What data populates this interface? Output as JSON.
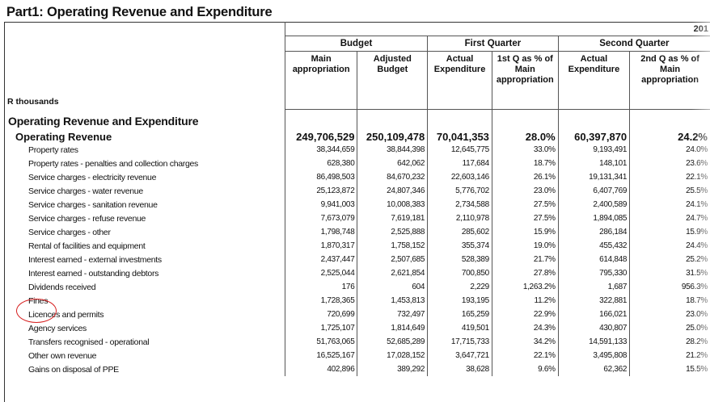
{
  "page": {
    "title": "Part1: Operating Revenue and Expenditure",
    "units_label": "R thousands",
    "year_label": "201",
    "highlight_color": "#d62020"
  },
  "header": {
    "groups": [
      "Budget",
      "First Quarter",
      "Second Quarter"
    ],
    "columns": [
      "Main appropriation",
      "Adjusted Budget",
      "Actual Expenditure",
      "1st Q as % of Main appropriation",
      "Actual Expenditure",
      "2nd Q as % of Main appropriation"
    ]
  },
  "section": {
    "title": "Operating Revenue and Expenditure"
  },
  "total": {
    "label": "Operating Revenue",
    "values": [
      "249,706,529",
      "250,109,478",
      "70,041,353",
      "28.0%",
      "60,397,870",
      "24.2%"
    ]
  },
  "rows": [
    {
      "label": "Property rates",
      "values": [
        "38,344,659",
        "38,844,398",
        "12,645,775",
        "33.0%",
        "9,193,491",
        "24.0%"
      ]
    },
    {
      "label": "Property rates - penalties and collection charges",
      "values": [
        "628,380",
        "642,062",
        "117,684",
        "18.7%",
        "148,101",
        "23.6%"
      ]
    },
    {
      "label": "Service charges - electricity revenue",
      "values": [
        "86,498,503",
        "84,670,232",
        "22,603,146",
        "26.1%",
        "19,131,341",
        "22.1%"
      ]
    },
    {
      "label": "Service charges - water revenue",
      "values": [
        "25,123,872",
        "24,807,346",
        "5,776,702",
        "23.0%",
        "6,407,769",
        "25.5%"
      ]
    },
    {
      "label": "Service charges - sanitation revenue",
      "values": [
        "9,941,003",
        "10,008,383",
        "2,734,588",
        "27.5%",
        "2,400,589",
        "24.1%"
      ]
    },
    {
      "label": "Service charges - refuse revenue",
      "values": [
        "7,673,079",
        "7,619,181",
        "2,110,978",
        "27.5%",
        "1,894,085",
        "24.7%"
      ]
    },
    {
      "label": "Service charges - other",
      "values": [
        "1,798,748",
        "2,525,888",
        "285,602",
        "15.9%",
        "286,184",
        "15.9%"
      ]
    },
    {
      "label": "Rental of facilities and equipment",
      "values": [
        "1,870,317",
        "1,758,152",
        "355,374",
        "19.0%",
        "455,432",
        "24.4%"
      ]
    },
    {
      "label": "Interest earned - external investments",
      "values": [
        "2,437,447",
        "2,507,685",
        "528,389",
        "21.7%",
        "614,848",
        "25.2%"
      ]
    },
    {
      "label": "Interest earned - outstanding debtors",
      "values": [
        "2,525,044",
        "2,621,854",
        "700,850",
        "27.8%",
        "795,330",
        "31.5%"
      ]
    },
    {
      "label": "Dividends received",
      "values": [
        "176",
        "604",
        "2,229",
        "1,263.2%",
        "1,687",
        "956.3%"
      ]
    },
    {
      "label": "Fines",
      "values": [
        "1,728,365",
        "1,453,813",
        "193,195",
        "11.2%",
        "322,881",
        "18.7%"
      ]
    },
    {
      "label": "Licences and permits",
      "values": [
        "720,699",
        "732,497",
        "165,259",
        "22.9%",
        "166,021",
        "23.0%"
      ]
    },
    {
      "label": "Agency services",
      "values": [
        "1,725,107",
        "1,814,649",
        "419,501",
        "24.3%",
        "430,807",
        "25.0%"
      ]
    },
    {
      "label": "Transfers recognised - operational",
      "values": [
        "51,763,065",
        "52,685,289",
        "17,715,733",
        "34.2%",
        "14,591,133",
        "28.2%"
      ]
    },
    {
      "label": "Other own revenue",
      "values": [
        "16,525,167",
        "17,028,152",
        "3,647,721",
        "22.1%",
        "3,495,808",
        "21.2%"
      ]
    },
    {
      "label": "Gains on disposal of PPE",
      "values": [
        "402,896",
        "389,292",
        "38,628",
        "9.6%",
        "62,362",
        "15.5%"
      ]
    }
  ]
}
